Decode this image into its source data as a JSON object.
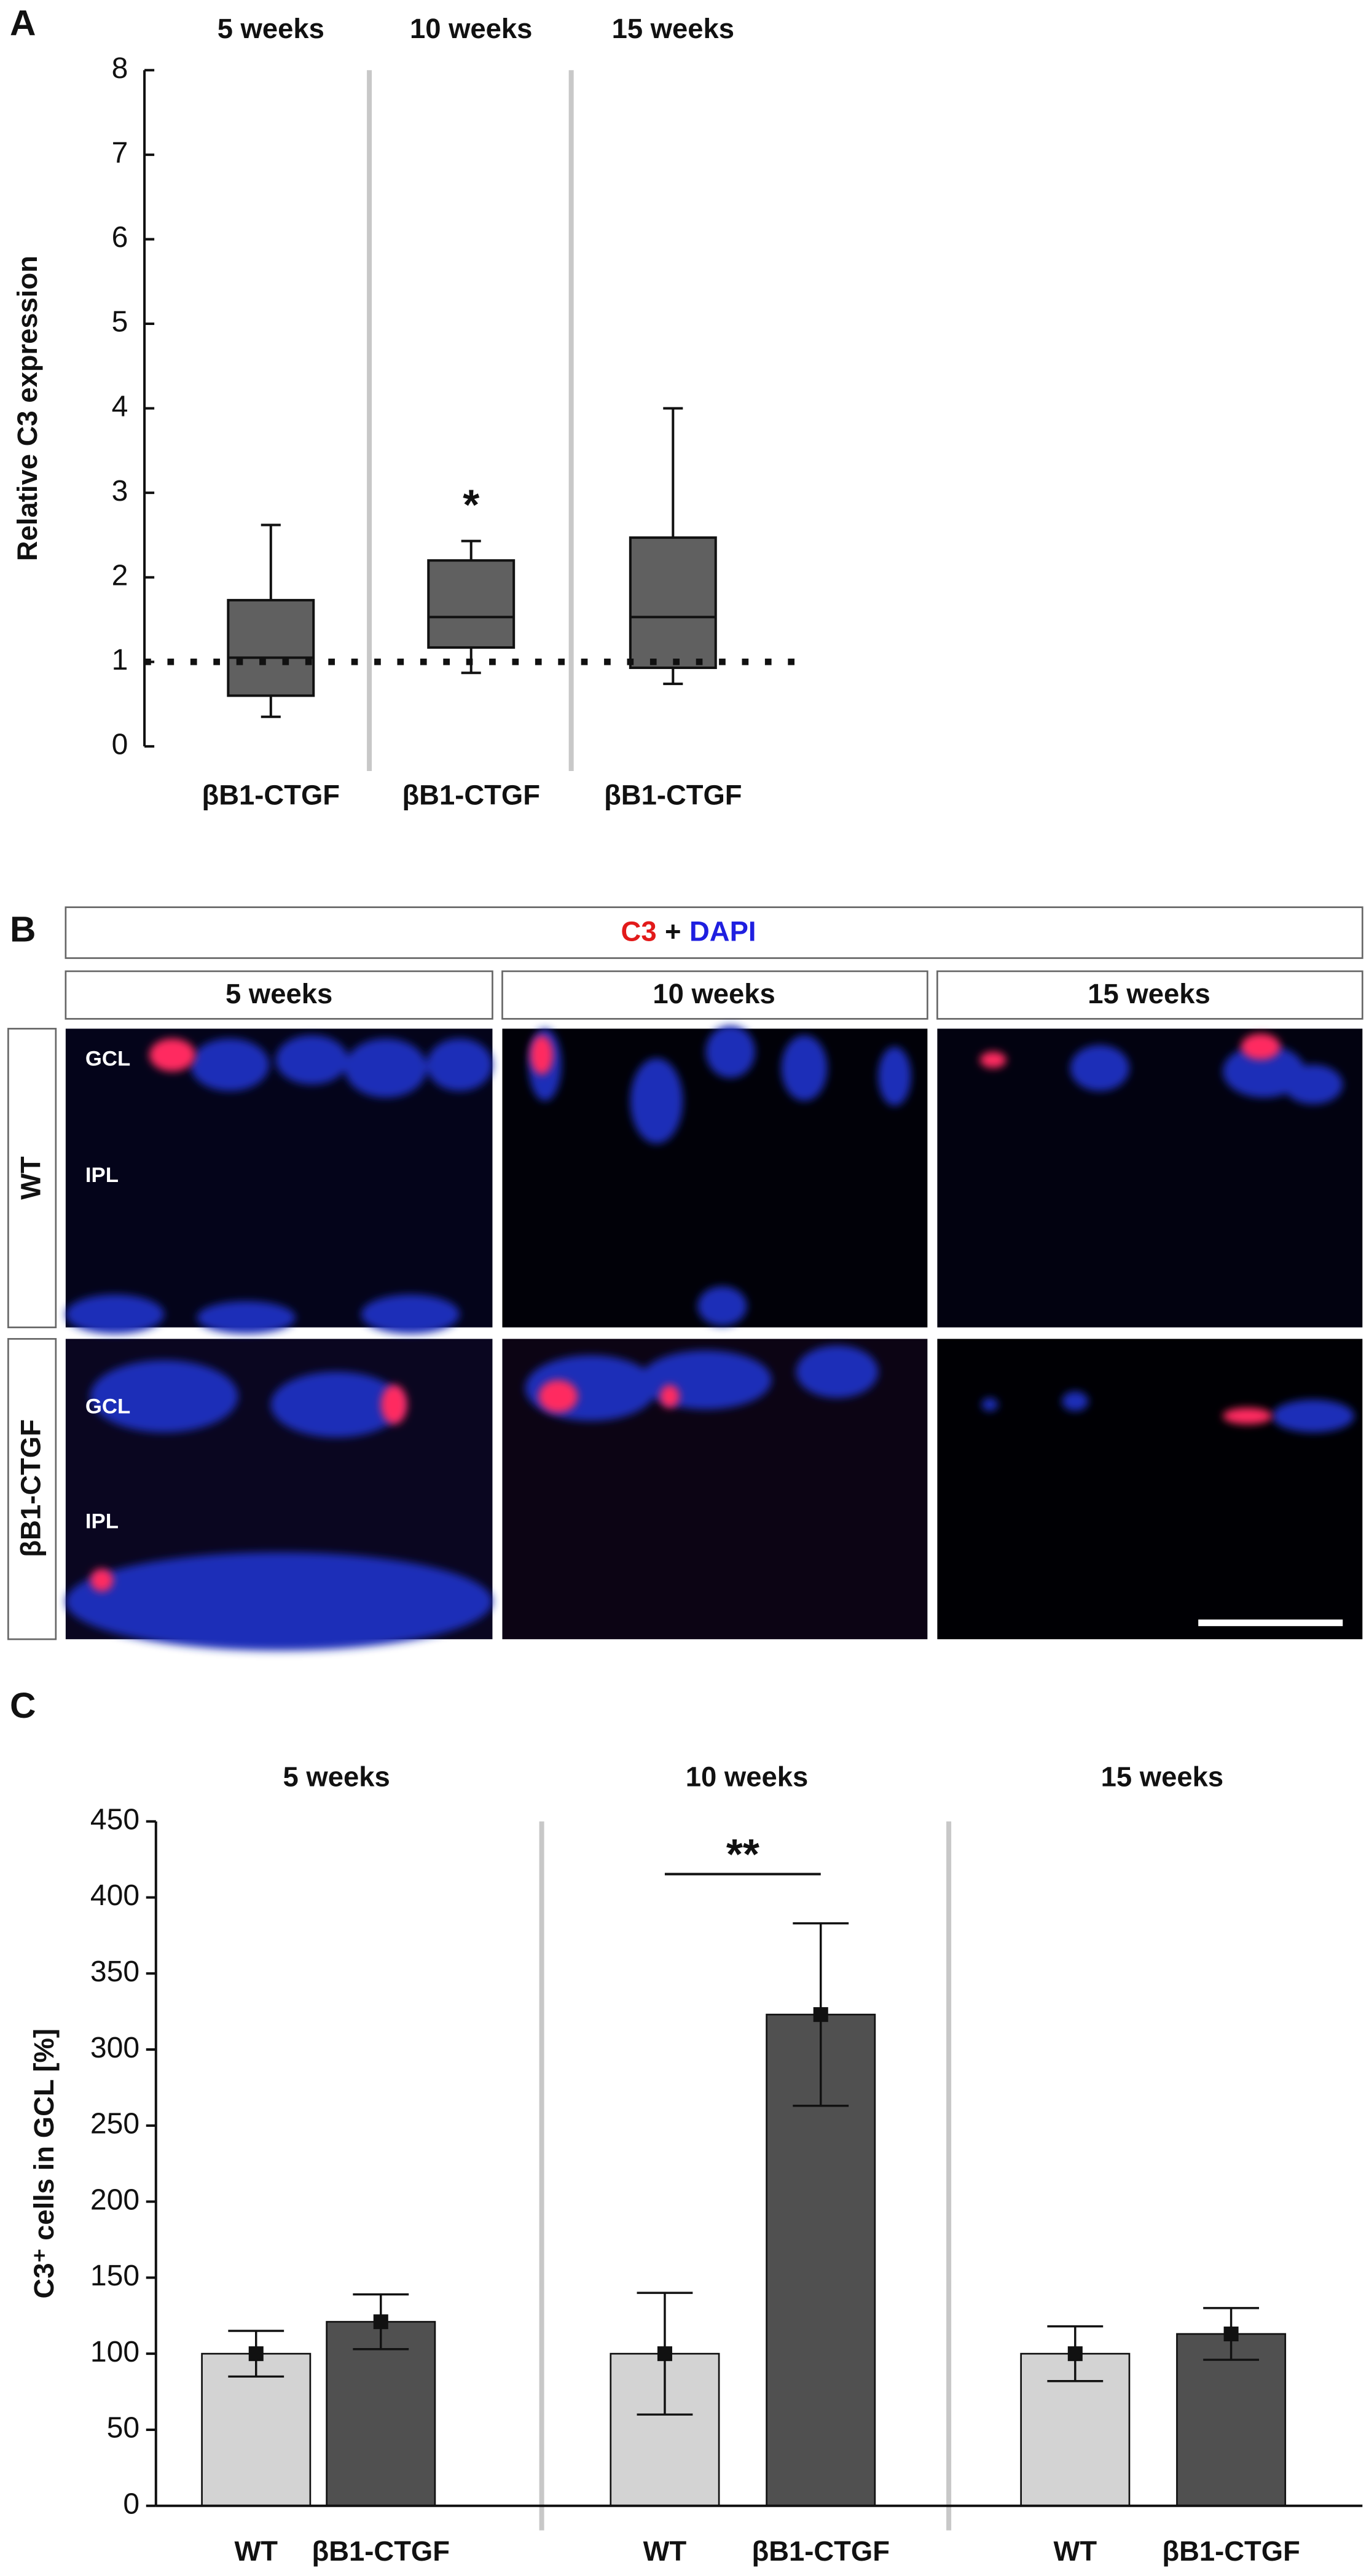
{
  "chart_data": [
    {
      "type": "box",
      "panel": "A",
      "ylabel": "Relative C3 expression",
      "groups": [
        "5 weeks",
        "10 weeks",
        "15 weeks"
      ],
      "categories": [
        "βB1-CTGF",
        "βB1-CTGF",
        "βB1-CTGF"
      ],
      "stats": [
        {
          "min": 0.35,
          "q1": 0.6,
          "median": 1.05,
          "q3": 1.73,
          "max": 2.62
        },
        {
          "min": 0.87,
          "q1": 1.17,
          "median": 1.53,
          "q3": 2.2,
          "max": 2.43
        },
        {
          "min": 0.74,
          "q1": 0.93,
          "median": 1.53,
          "q3": 2.47,
          "max": 4.0
        }
      ],
      "color": "#606060",
      "reference_line": 1,
      "annotations": [
        "*"
      ],
      "ylim": [
        0,
        8
      ],
      "yticks": [
        0,
        1,
        2,
        3,
        4,
        5,
        6,
        7,
        8
      ]
    },
    {
      "type": "bar",
      "panel": "C",
      "ylabel": "C3⁺ cells in GCL [%]",
      "groups": [
        "5 weeks",
        "10 weeks",
        "15 weeks"
      ],
      "categories": [
        "WT",
        "βB1-CTGF",
        "WT",
        "βB1-CTGF",
        "WT",
        "βB1-CTGF"
      ],
      "values": [
        100,
        121,
        100,
        323,
        100,
        113
      ],
      "errors": [
        15,
        18,
        40,
        60,
        18,
        17
      ],
      "colors": [
        "#d3d3d3",
        "#505050",
        "#d3d3d3",
        "#505050",
        "#d3d3d3",
        "#505050"
      ],
      "annotations": [
        "**"
      ],
      "ylim": [
        0,
        450
      ],
      "yticks": [
        0,
        50,
        100,
        150,
        200,
        250,
        300,
        350,
        400,
        450
      ]
    }
  ],
  "panel_b": {
    "panel": "B",
    "header": [
      "C3",
      "+",
      "DAPI"
    ],
    "columns": [
      "5 weeks",
      "10 weeks",
      "15 weeks"
    ],
    "rows": [
      "WT",
      "βB1-CTGF"
    ],
    "layers": [
      "GCL",
      "IPL"
    ]
  }
}
